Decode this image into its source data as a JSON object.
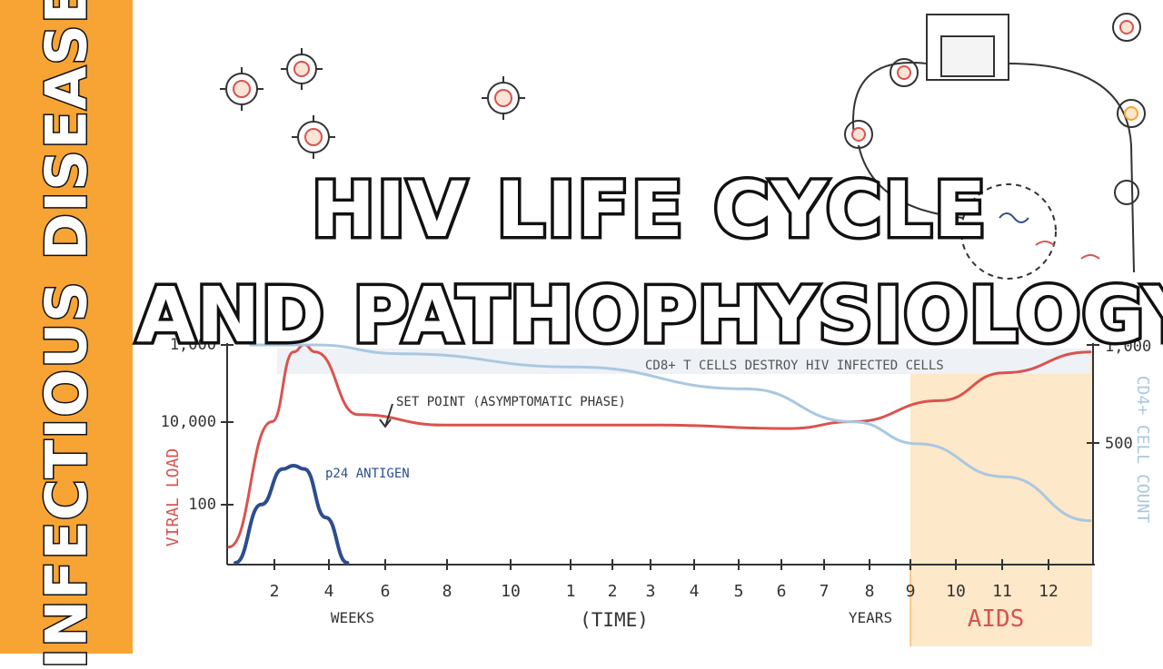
{
  "sidebar": {
    "label": "INFECTIOUS DISEASE"
  },
  "title": {
    "line1": "HIV LIFE CYCLE",
    "line2": "AND PATHOPHYSIOLOGY"
  },
  "colors": {
    "accent": "#f7a434",
    "viral_load": "#d9534f",
    "cd4": "#a9c8e2",
    "p24": "#2e4d8f",
    "aids_zone": "#fde8c9"
  },
  "chart_data": {
    "type": "line",
    "xlabel": "(TIME)",
    "ylabel_left": "VIRAL LOAD",
    "ylabel_right": "CD4+ CELL COUNT",
    "left_ticks": [
      "1,000",
      "10,000",
      "100"
    ],
    "right_ticks": [
      "1,000",
      "500"
    ],
    "x_ticks": [
      "2",
      "4",
      "6",
      "8",
      "10",
      "1",
      "2",
      "3",
      "4",
      "5",
      "6",
      "7",
      "8",
      "9",
      "10",
      "11",
      "12"
    ],
    "x_units": [
      "WEEKS",
      "YEARS"
    ],
    "annotations": {
      "set_point": "SET POINT (ASYMPTOMATIC PHASE)",
      "p24": "p24 ANTIGEN",
      "cd4_note": "CD8+ T CELLS DESTROY HIV INFECTED CELLS",
      "aids": "AIDS"
    },
    "series": [
      {
        "name": "Viral load",
        "color": "#d9534f",
        "x": [
          0,
          2,
          3,
          3.5,
          4,
          6,
          10,
          16,
          20,
          26,
          29,
          33,
          36,
          40
        ],
        "y": [
          0.2,
          2.0,
          3.0,
          3.1,
          3.0,
          2.1,
          1.95,
          1.95,
          1.95,
          1.9,
          2.0,
          2.3,
          2.7,
          3.0
        ]
      },
      {
        "name": "CD4+ count",
        "color": "#a9c8e2",
        "x": [
          1,
          4,
          8,
          16,
          24,
          29,
          32,
          36,
          40
        ],
        "y": [
          1000,
          1000,
          960,
          900,
          800,
          650,
          550,
          400,
          200
        ]
      },
      {
        "name": "p24 antigen",
        "color": "#2e4d8f",
        "x": [
          0.3,
          1.5,
          2.5,
          3,
          3.5,
          4.5,
          5.5
        ],
        "y": [
          0.0,
          0.9,
          1.45,
          1.5,
          1.45,
          0.7,
          0.0
        ]
      }
    ]
  }
}
